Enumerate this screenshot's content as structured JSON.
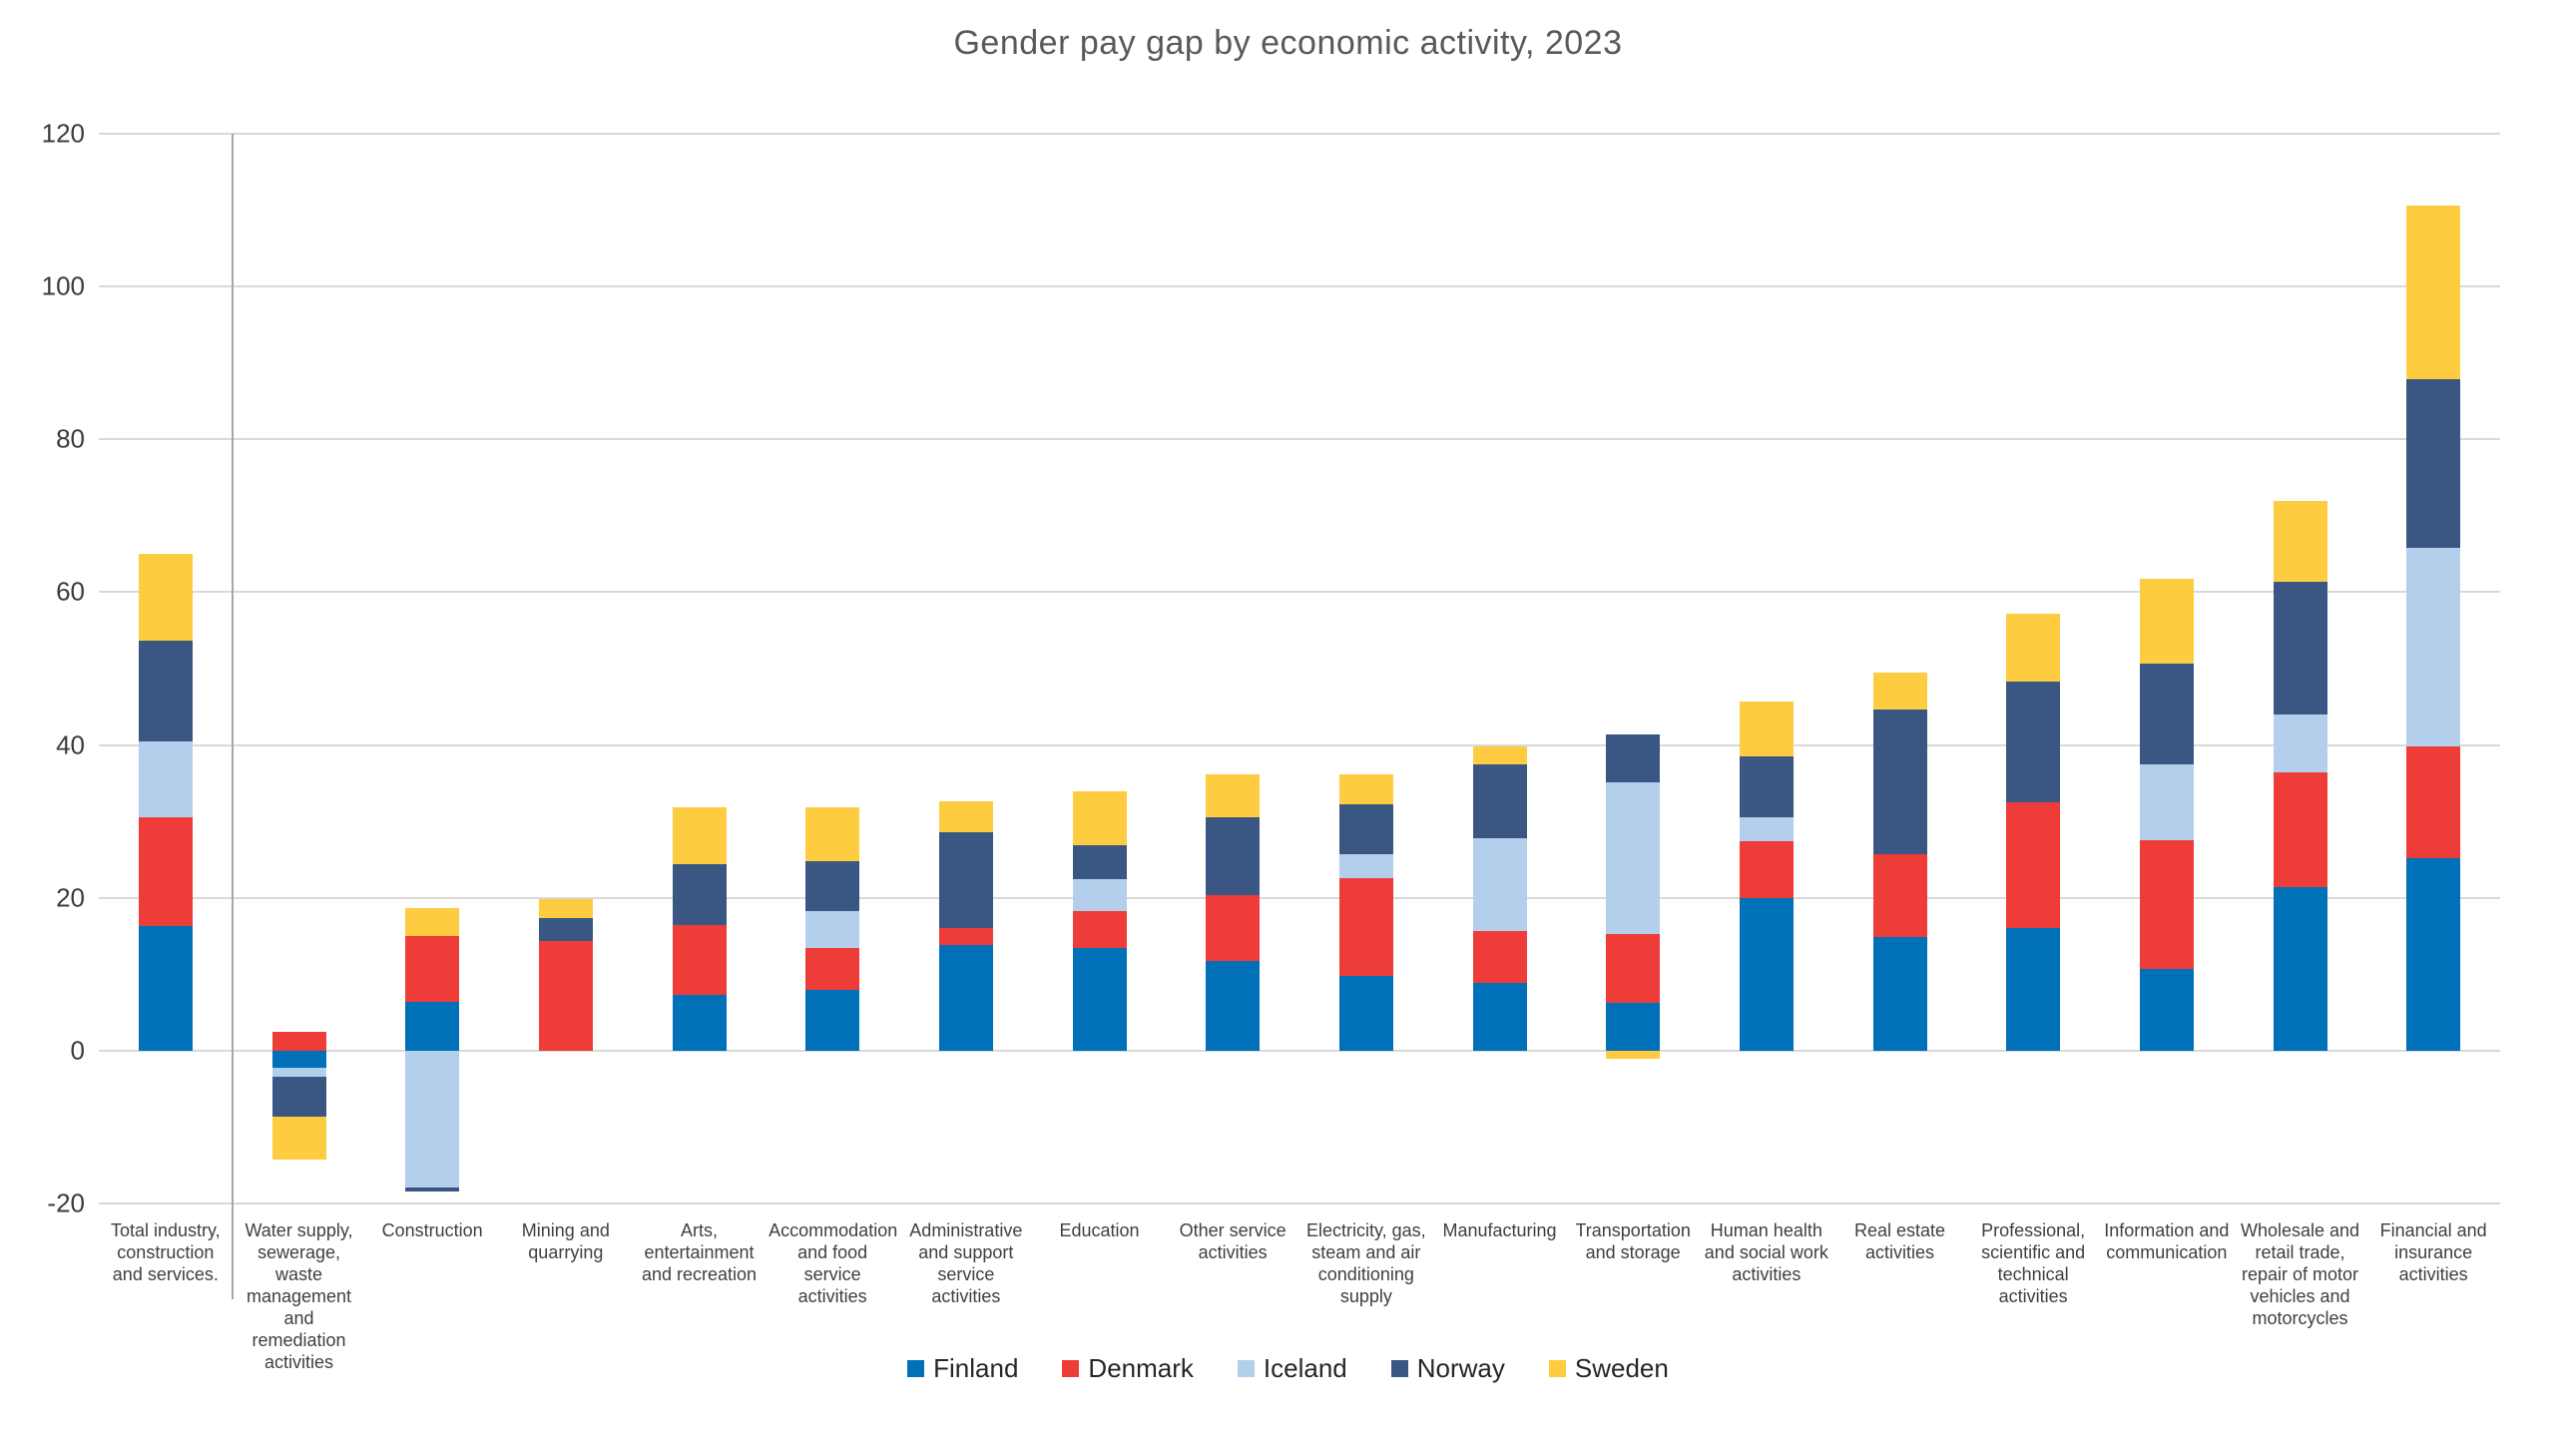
{
  "title": "Gender pay gap by economic activity, 2023",
  "colors": {
    "gridline": "#d9d9d9",
    "separator": "#a6a6a6",
    "axis_text": "#3b3b3b",
    "title_text": "#595959"
  },
  "chart_data": {
    "type": "bar",
    "stacked": true,
    "title": "Gender pay gap by economic activity, 2023",
    "xlabel": "",
    "ylabel": "",
    "ylim": [
      -20,
      120
    ],
    "yticks": [
      120,
      100,
      80,
      60,
      40,
      20,
      0,
      -20
    ],
    "grid": "horizontal",
    "legend_position": "bottom",
    "separator_after_category_index": 0,
    "categories": [
      "Total industry, construction and services.",
      "Water supply, sewerage, waste management and remediation activities",
      "Construction",
      "Mining and quarrying",
      "Arts, entertainment and recreation",
      "Accommodation and food service activities",
      "Administrative and support service activities",
      "Education",
      "Other service activities",
      "Electricity, gas, steam and air conditioning supply",
      "Manufacturing",
      "Transportation and storage",
      "Human health and social work activities",
      "Real estate activities",
      "Professional, scientific and technical activities",
      "Information and communication",
      "Wholesale and retail trade, repair of motor vehicles and motorcycles",
      "Financial and insurance activities"
    ],
    "series": [
      {
        "name": "Finland",
        "color": "#0070b8",
        "values": [
          16.3,
          -2.3,
          6.4,
          0,
          7.3,
          8.0,
          13.8,
          13.4,
          11.7,
          9.8,
          8.9,
          6.3,
          19.9,
          14.9,
          16.0,
          10.7,
          21.4,
          25.2
        ]
      },
      {
        "name": "Denmark",
        "color": "#ee3c39",
        "values": [
          14.3,
          2.5,
          8.6,
          14.4,
          9.1,
          5.4,
          2.2,
          4.9,
          8.7,
          12.8,
          6.7,
          8.9,
          7.5,
          10.8,
          16.5,
          16.9,
          15.0,
          14.6
        ]
      },
      {
        "name": "Iceland",
        "color": "#b4cfec",
        "values": [
          9.9,
          -1.1,
          -17.9,
          0,
          0,
          4.9,
          0,
          4.1,
          0,
          3.1,
          12.2,
          19.9,
          3.1,
          0,
          0,
          9.9,
          7.6,
          26.0
        ]
      },
      {
        "name": "Norway",
        "color": "#3a5784",
        "values": [
          13.2,
          -5.3,
          -0.5,
          2.9,
          8.0,
          6.5,
          12.6,
          4.5,
          10.1,
          6.6,
          9.7,
          6.3,
          8.0,
          18.9,
          15.8,
          13.2,
          17.3,
          22.1
        ]
      },
      {
        "name": "Sweden",
        "color": "#fdcc40",
        "values": [
          11.3,
          -5.5,
          3.6,
          2.5,
          7.4,
          7.1,
          4.0,
          7.0,
          5.7,
          3.9,
          2.3,
          -1.0,
          7.2,
          4.9,
          8.9,
          11.0,
          10.7,
          22.7
        ]
      }
    ]
  }
}
